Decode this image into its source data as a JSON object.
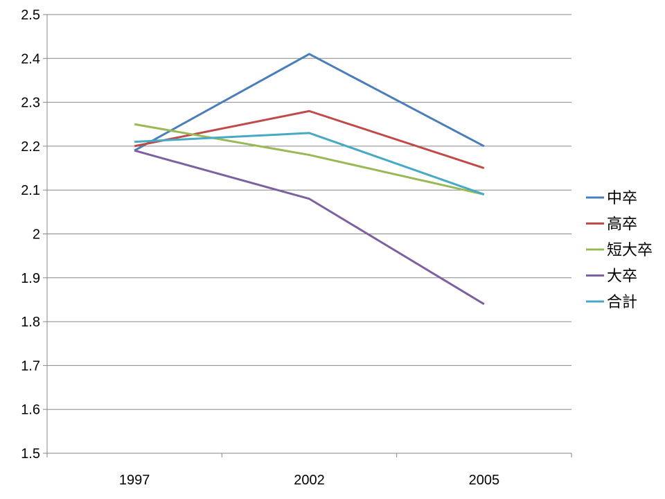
{
  "chart_data": {
    "type": "line",
    "title": "",
    "xlabel": "",
    "ylabel": "",
    "x": [
      "1997",
      "2002",
      "2005"
    ],
    "ylim": [
      1.5,
      2.5
    ],
    "yticks": [
      1.5,
      1.6,
      1.7,
      1.8,
      1.9,
      2,
      2.1,
      2.2,
      2.3,
      2.4,
      2.5
    ],
    "ytick_labels": [
      "1.5",
      "1.6",
      "1.7",
      "1.8",
      "1.9",
      "2",
      "2.1",
      "2.2",
      "2.3",
      "2.4",
      "2.5"
    ],
    "grid": true,
    "legend_position": "right",
    "series": [
      {
        "name": "中卒",
        "color": "#4a7ebb",
        "values": [
          2.19,
          2.41,
          2.2
        ]
      },
      {
        "name": "高卒",
        "color": "#be4b48",
        "values": [
          2.2,
          2.28,
          2.15
        ]
      },
      {
        "name": "短大卒",
        "color": "#98b954",
        "values": [
          2.25,
          2.18,
          2.09
        ]
      },
      {
        "name": "大卒",
        "color": "#7d60a0",
        "values": [
          2.19,
          2.08,
          1.84
        ]
      },
      {
        "name": "合計",
        "color": "#46aac5",
        "values": [
          2.21,
          2.23,
          2.09
        ]
      }
    ]
  }
}
